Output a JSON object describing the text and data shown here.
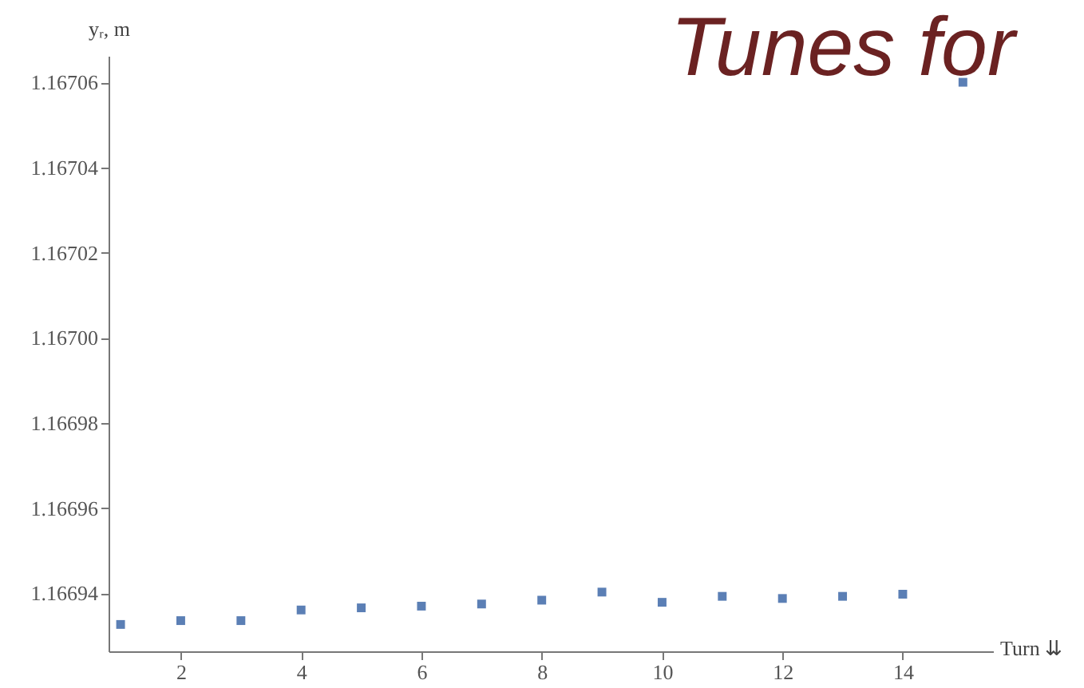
{
  "chart_data": {
    "type": "scatter",
    "title": "Tunes for",
    "xlabel": "Turn ⇊",
    "ylabel": "yᵣ, m",
    "x": [
      1,
      2,
      3,
      4,
      5,
      6,
      7,
      8,
      9,
      10,
      11,
      12,
      13,
      14,
      15
    ],
    "series": [
      {
        "color": "#5b7fb5",
        "values": [
          1.1669327,
          1.1669336,
          1.1669336,
          1.1669361,
          1.1669366,
          1.166937,
          1.1669375,
          1.1669384,
          1.1669403,
          1.1669379,
          1.1669393,
          1.1669388,
          1.1669393,
          1.1669398,
          1.16706
        ]
      }
    ],
    "xlim": [
      0.8,
      15.5
    ],
    "xticks": [
      2,
      4,
      6,
      8,
      10,
      12,
      14
    ],
    "ylim": [
      1.1669264,
      1.1670662
    ],
    "yticks": [
      1.16694,
      1.16696,
      1.16698,
      {
        "value": 1.167,
        "label": "1.16700"
      },
      1.16702,
      1.16704,
      1.16706
    ],
    "marker": "square",
    "grid": false,
    "legend": false
  }
}
